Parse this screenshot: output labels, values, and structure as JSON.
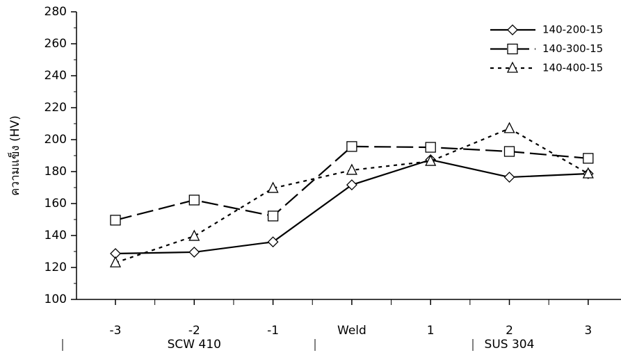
{
  "chart_data": {
    "type": "line",
    "ylabel": "ความแข็ง (HV)",
    "categories": [
      "-3",
      "-2",
      "-1",
      "Weld",
      "1",
      "2",
      "3"
    ],
    "annotations": [
      "SCW 410",
      "SUS 304"
    ],
    "series": [
      {
        "name": "140-200-15",
        "color": "#000000",
        "line_style": "solid",
        "marker": "diamond",
        "values": [
          128.7,
          129.6,
          136,
          171.7,
          187.4,
          176.5,
          178.7
        ]
      },
      {
        "name": "140-300-15",
        "color": "#000000",
        "line_style": "dashed",
        "marker": "square",
        "values": [
          149.6,
          162.2,
          152.2,
          195.7,
          195.2,
          192.6,
          188.3
        ]
      },
      {
        "name": "140-400-15",
        "color": "#000000",
        "line_style": "dotted",
        "marker": "triangle",
        "values": [
          123,
          139.6,
          169.6,
          180.9,
          186.5,
          207,
          178.7
        ]
      }
    ],
    "ylim": [
      100,
      280
    ],
    "yticks": [
      100,
      120,
      140,
      160,
      180,
      200,
      220,
      240,
      260,
      280
    ],
    "legend": "upper-right"
  }
}
